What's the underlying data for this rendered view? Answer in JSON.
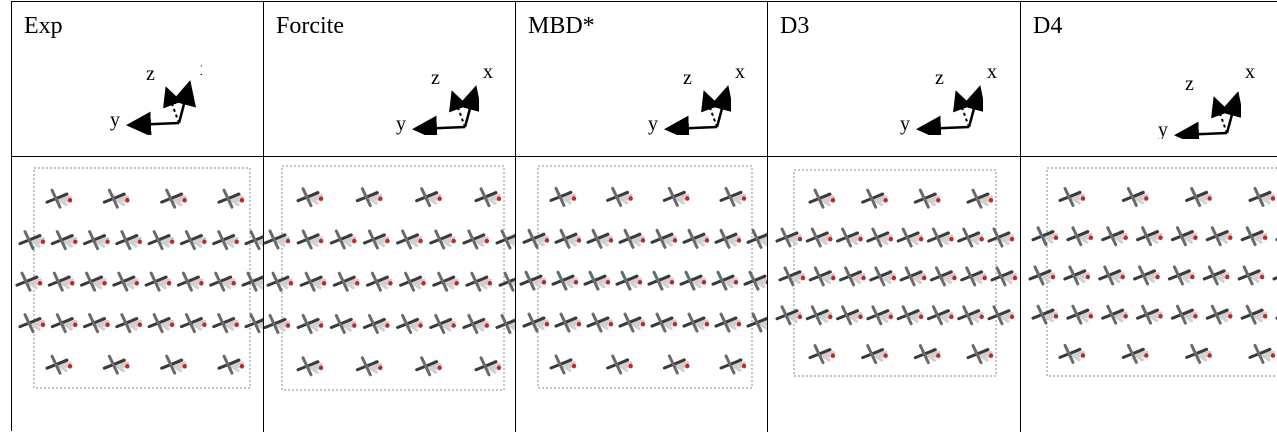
{
  "columns": [
    {
      "label": "Exp",
      "axes": {
        "x": "x",
        "y": "y",
        "z": "z"
      }
    },
    {
      "label": "Forcite",
      "axes": {
        "x": "x",
        "y": "y",
        "z": "z"
      }
    },
    {
      "label": "MBD*",
      "axes": {
        "x": "x",
        "y": "y",
        "z": "z"
      }
    },
    {
      "label": "D3",
      "axes": {
        "x": "x",
        "y": "y",
        "z": "z"
      }
    },
    {
      "label": "D4",
      "axes": {
        "x": "x",
        "y": "y",
        "z": "z"
      }
    }
  ],
  "colors": {
    "carbon": "#3a3a3a",
    "hydrogen": "#d0d0d0",
    "oxygen": "#cc2222",
    "cell_box": "#888888"
  }
}
